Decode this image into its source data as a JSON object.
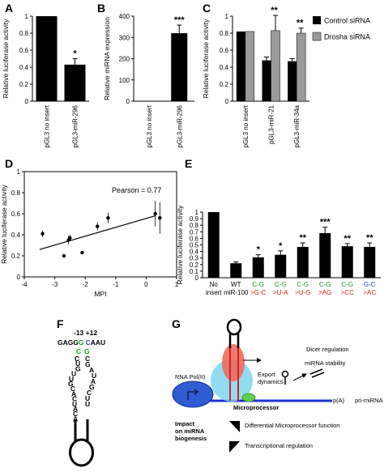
{
  "panels": {
    "A": "A",
    "B": "B",
    "C": "C",
    "D": "D",
    "E": "E",
    "F": "F",
    "G": "G"
  },
  "chart_data": [
    {
      "id": "A",
      "type": "bar",
      "categories": [
        "pGL3 no insert",
        "pGL3-miR-296"
      ],
      "values": [
        1,
        0.43
      ],
      "errors": [
        0,
        0.07
      ],
      "significance": [
        "",
        "*"
      ],
      "ylabel": "Relative luciferase activity",
      "ylim": [
        0,
        1
      ],
      "yticks": [
        "0",
        "0.2",
        "0.4",
        "0.6",
        "0.8",
        "1"
      ],
      "color": "#000000"
    },
    {
      "id": "B",
      "type": "bar",
      "categories": [
        "pGL3 no insert",
        "pGL3-miR-296"
      ],
      "values": [
        1,
        320
      ],
      "errors": [
        0,
        38
      ],
      "significance": [
        "",
        "***"
      ],
      "ylabel": "Relative miRNA expression",
      "ylim": [
        0,
        400
      ],
      "yticks": [
        "0",
        "100",
        "200",
        "300",
        "400"
      ],
      "color": "#000000"
    },
    {
      "id": "C",
      "type": "bar",
      "categories": [
        "pGL3 no insert",
        "pGL3-miR-21",
        "pGL3-miR-34a"
      ],
      "series": [
        {
          "name": "Control siRNA",
          "color": "#000000",
          "values": [
            0.82,
            0.48,
            0.47
          ],
          "errors": [
            0,
            0.04,
            0.03
          ]
        },
        {
          "name": "Drosha siRNA",
          "color": "#9a9a9a",
          "values": [
            0.82,
            0.83,
            0.8
          ],
          "errors": [
            0,
            0.18,
            0.06
          ]
        }
      ],
      "significance": [
        "",
        "**",
        "**"
      ],
      "ylabel": "Relative luciferase activity",
      "ylim": [
        0,
        1
      ],
      "yticks": [
        "0",
        "0.2",
        "0.4",
        "0.6",
        "0.8",
        "1"
      ],
      "legend": "right"
    },
    {
      "id": "D",
      "type": "scatter",
      "xlabel": "MPI",
      "ylabel": "Relative luciferase activity",
      "xlim": [
        -4,
        1
      ],
      "ylim": [
        0,
        1
      ],
      "xticks": [
        "-4",
        "-3",
        "-2",
        "-1",
        "0",
        "1"
      ],
      "yticks": [
        "0",
        "0.2",
        "0.4",
        "0.6",
        "0.8",
        "1"
      ],
      "points": [
        {
          "x": -3.4,
          "y": 0.41,
          "err": 0.03
        },
        {
          "x": -2.7,
          "y": 0.2,
          "err": 0
        },
        {
          "x": -2.55,
          "y": 0.35,
          "err": 0.04
        },
        {
          "x": -2.5,
          "y": 0.37,
          "err": 0.03
        },
        {
          "x": -2.1,
          "y": 0.23,
          "err": 0
        },
        {
          "x": -1.6,
          "y": 0.48,
          "err": 0.04
        },
        {
          "x": -1.25,
          "y": 0.56,
          "err": 0.05
        },
        {
          "x": 0.3,
          "y": 0.6,
          "err": 0.12
        },
        {
          "x": 0.45,
          "y": 0.56,
          "err": 0.15
        }
      ],
      "fit": {
        "x": [
          -3.5,
          0.3
        ],
        "y": [
          0.26,
          0.58
        ]
      },
      "annotation": "Pearson = 0.77"
    },
    {
      "id": "E",
      "type": "bar",
      "categories": [
        "No insert",
        "WT miR-100",
        "C-G >G-C",
        "C-G >U-A",
        "C-G >U-G",
        "C-G >AG",
        "C-G >CC",
        "G-C >AC"
      ],
      "labels": [
        {
          "top": "No",
          "bottom": "insert",
          "topColor": "#000000",
          "bottomColor": "#000000"
        },
        {
          "top": "WT",
          "bottom": "miR-100",
          "topColor": "#000000",
          "bottomColor": "#000000"
        },
        {
          "top": "C-G",
          "bottom": ">G-C",
          "topColor": "#1a9b2a",
          "bottomColor": "#d0221d"
        },
        {
          "top": "C-G",
          "bottom": ">U-A",
          "topColor": "#1a9b2a",
          "bottomColor": "#d0221d"
        },
        {
          "top": "C-G",
          "bottom": ">U-G",
          "topColor": "#1a9b2a",
          "bottomColor": "#d0221d"
        },
        {
          "top": "C-G",
          "bottom": ">AG",
          "topColor": "#1a9b2a",
          "bottomColor": "#d0221d"
        },
        {
          "top": "C-G",
          "bottom": ">CC",
          "topColor": "#1a9b2a",
          "bottomColor": "#d0221d"
        },
        {
          "top": "G-C",
          "bottom": ">AC",
          "topColor": "#2a47c8",
          "bottomColor": "#d0221d"
        }
      ],
      "values": [
        1,
        0.22,
        0.31,
        0.35,
        0.47,
        0.68,
        0.48,
        0.47
      ],
      "errors": [
        0,
        0.02,
        0.04,
        0.06,
        0.06,
        0.09,
        0.04,
        0.06
      ],
      "significance": [
        "",
        "",
        "*",
        "*",
        "**",
        "***",
        "**",
        "**"
      ],
      "ylabel": "Relative luciferase activity",
      "ylim": [
        0,
        1
      ],
      "yticks": [
        "0",
        "0.1",
        "0.2",
        "0.3",
        "0.4",
        "0.5",
        "0.6",
        "0.7",
        "0.8",
        "0.9",
        "1"
      ],
      "color": "#000000"
    }
  ],
  "panelF": {
    "positions": "-13 +12",
    "top_left": "GAGG",
    "top_g": "G",
    "top_c": "C",
    "top_right": "AAU",
    "pair2_left": "C",
    "pair2_right": "G",
    "left_strand": [
      "C",
      "U",
      "G",
      "U",
      "U",
      "G",
      "C",
      "A",
      "C",
      "U",
      "A",
      "C",
      "A"
    ],
    "right_strand": [
      "C",
      "G",
      "A",
      "U",
      "A",
      "G",
      "C",
      "U",
      "U"
    ]
  },
  "panelG": {
    "rnapol": "RNA Pol(II)",
    "export": "Export\ndynamics",
    "dicer": "Dicer regulation",
    "mirna_stability": "miRNA stability",
    "microprocessor": "Microprocessor",
    "pA": "p(A)",
    "pri_mirna": "pri-miRNA",
    "impact": "Impact\non miRNA\nbiogenesis",
    "diff_mp": "Differential Microprocessor function",
    "transcriptional": "Transcriptional regulation"
  }
}
